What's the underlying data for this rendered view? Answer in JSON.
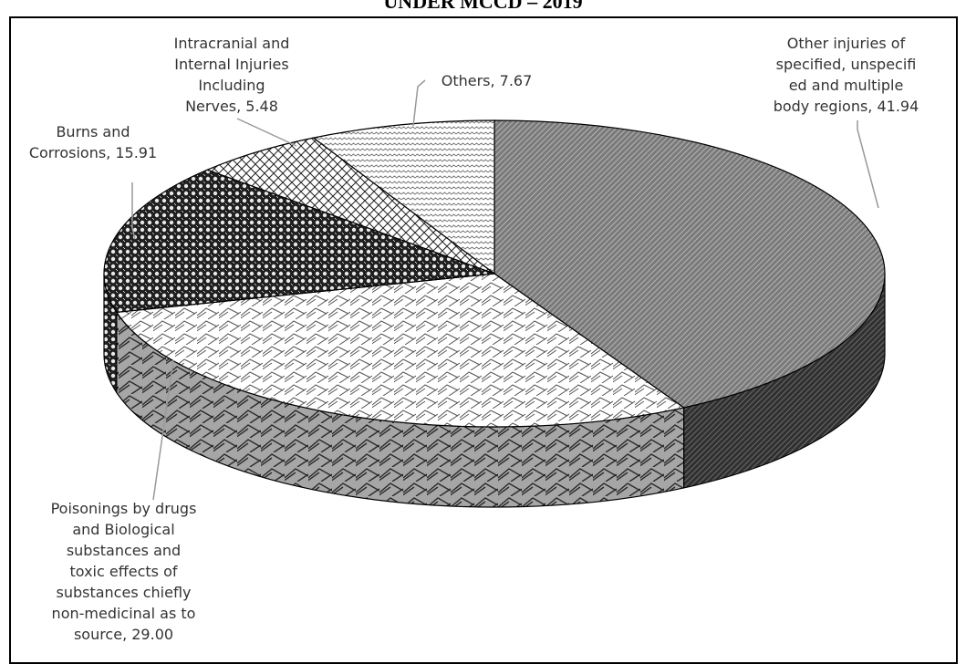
{
  "chart_data": {
    "type": "pie",
    "title": "UNDER MCCD – 2019",
    "slices": [
      {
        "label": "Other injuries of specified, unspecified and multiple body regions",
        "label_lines": [
          "Other injuries of",
          "specified, unspecifi",
          "ed and multiple",
          "body regions, 41.94"
        ],
        "value": 41.94
      },
      {
        "label": "Poisonings by drugs and Biological substances and toxic effects of substances chiefly non-medicinal as to source",
        "label_lines": [
          "Poisonings by drugs",
          "and Biological",
          "substances and",
          "toxic effects of",
          "substances chiefly",
          "non-medicinal as to",
          "source, 29.00"
        ],
        "value": 29.0
      },
      {
        "label": "Burns and Corrosions",
        "label_lines": [
          "Burns and",
          "Corrosions, 15.91"
        ],
        "value": 15.91
      },
      {
        "label": "Intracranial and Internal Injuries Including Nerves",
        "label_lines": [
          "Intracranial and",
          "Internal Injuries",
          "Including",
          "Nerves, 5.48"
        ],
        "value": 5.48
      },
      {
        "label": "Others",
        "label_lines": [
          "Others, 7.67"
        ],
        "value": 7.67
      }
    ],
    "legend": "none",
    "three_d": true
  }
}
